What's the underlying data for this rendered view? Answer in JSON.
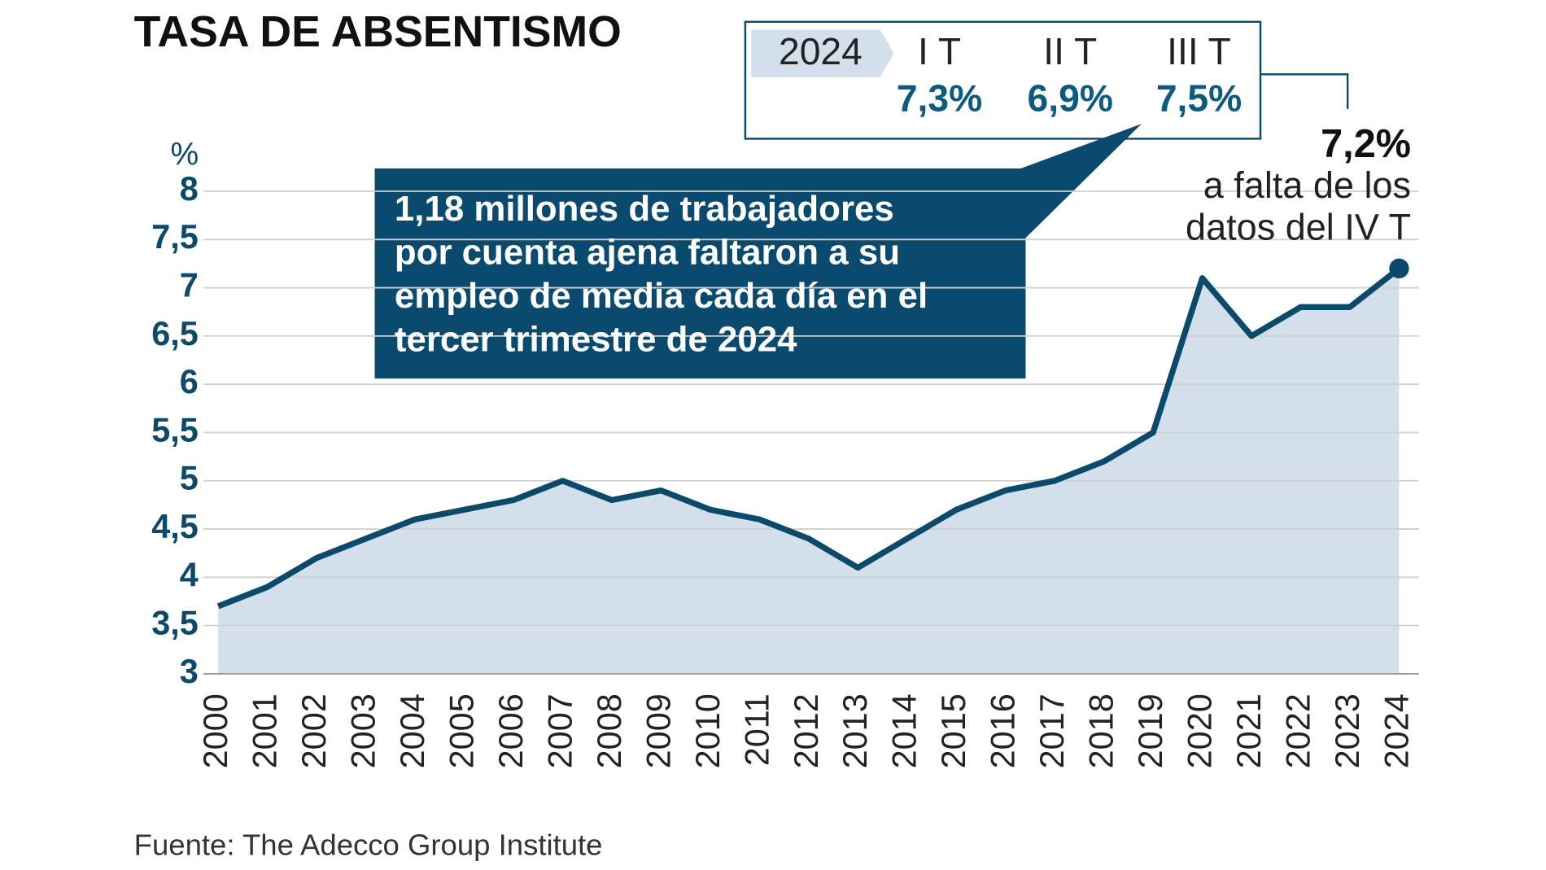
{
  "chart_data": {
    "type": "area",
    "title": "TASA DE ABSENTISMO",
    "y_unit": "%",
    "categories": [
      "2000",
      "2001",
      "2002",
      "2003",
      "2004",
      "2005",
      "2006",
      "2007",
      "2008",
      "2009",
      "2010",
      "2011",
      "2012",
      "2013",
      "2014",
      "2015",
      "2016",
      "2017",
      "2018",
      "2019",
      "2020",
      "2021",
      "2022",
      "2023",
      "2024"
    ],
    "values": [
      3.7,
      3.9,
      4.2,
      4.4,
      4.6,
      4.7,
      4.8,
      5.0,
      4.8,
      4.9,
      4.7,
      4.6,
      4.4,
      4.1,
      4.4,
      4.7,
      4.9,
      5.0,
      5.2,
      5.5,
      7.1,
      6.5,
      6.8,
      6.8,
      7.2
    ],
    "value_labels": [
      null,
      null,
      null,
      null,
      null,
      null,
      null,
      null,
      null,
      null,
      null,
      null,
      null,
      null,
      null,
      null,
      null,
      null,
      null,
      null,
      null,
      null,
      null,
      null,
      "7,2%"
    ],
    "line_color": "#0c4a6b",
    "fill_color": "#d3e0eb",
    "ylim": [
      3,
      8
    ],
    "yticks": [
      3,
      {
        "value": 3.5,
        "label": "3,5"
      },
      4,
      {
        "value": 4.5,
        "label": "4,5"
      },
      5,
      {
        "value": 5.5,
        "label": "5,5"
      },
      6,
      {
        "value": 6.5,
        "label": "6,5"
      },
      7,
      {
        "value": 7.5,
        "label": "7,5"
      },
      8
    ],
    "grid": true,
    "last_point_note": [
      "a falta de los",
      "datos del  IV T"
    ],
    "annotation": [
      "1,18 millones de trabajadores",
      "por cuenta ajena faltaron a su",
      "empleo de media cada día en el",
      "tercer trimestre de 2024"
    ],
    "quarters_year": "2024",
    "quarters": [
      {
        "label": "I T",
        "value": "7,3%"
      },
      {
        "label": "II T",
        "value": "6,9%"
      },
      {
        "label": "III T",
        "value": "7,5%"
      }
    ],
    "source": "Fuente: The Adecco Group Institute"
  }
}
